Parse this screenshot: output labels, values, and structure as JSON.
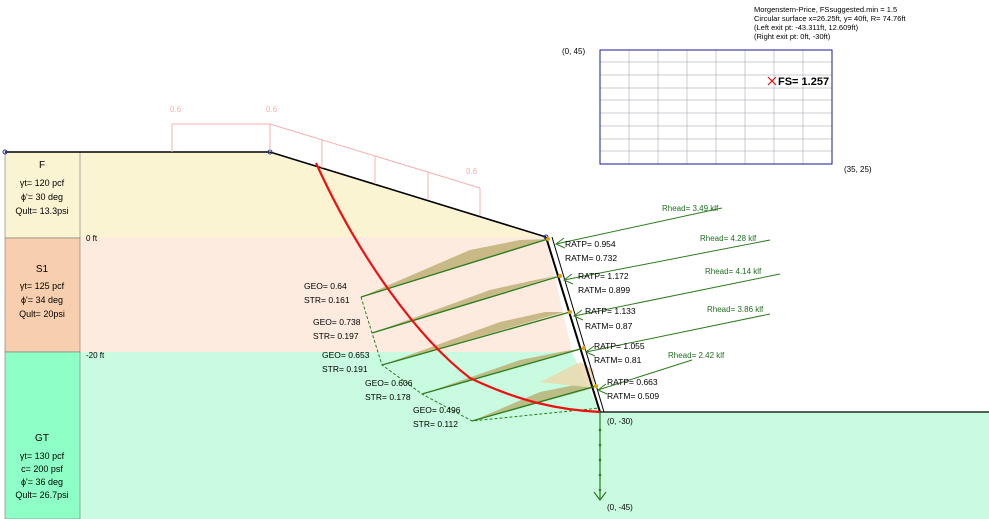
{
  "header": {
    "lines": [
      "Morgenstern-Price, FSsuggested.min = 1.5",
      "Circular surface x=26.25ft, y= 40ft, R= 74.76ft",
      "(Left exit pt: -43.311ft, 12.609ft)",
      "(Right exit pt: 0ft, -30ft)"
    ]
  },
  "grid": {
    "corner_top_left": "(0, 45)",
    "corner_bottom_right": "(35, 25)",
    "fs_label": "FS= 1.257"
  },
  "surcharge": {
    "labels": [
      "0.6",
      "0.6",
      "0.6"
    ]
  },
  "elevations": [
    "0 ft",
    "-20 ft"
  ],
  "layers": [
    {
      "name": "F",
      "props": [
        "γt= 120 pcf",
        "ϕ'= 30 deg",
        "Qult= 13.3psi"
      ],
      "color": "#fbf4d3"
    },
    {
      "name": "S1",
      "props": [
        "γt= 125 pcf",
        "ϕ'= 34 deg",
        "Qult= 20psi"
      ],
      "color": "#f7cfae"
    },
    {
      "name": "GT",
      "props": [
        "γt= 130 pcf",
        "c= 200 psf",
        "ϕ'= 36 deg",
        "Qult= 26.7psi"
      ],
      "color": "#8effc6"
    }
  ],
  "wall": {
    "top_label": "(0, -30)",
    "bottom_label": "(0, -45)"
  },
  "nails": [
    {
      "rhead": "Rhead= 3.49 klf",
      "ratp": "RATP= 0.954",
      "ratm": "RATM= 0.732",
      "geo": "GEO= 0.64",
      "str": "STR= 0.161"
    },
    {
      "rhead": "Rhead= 4.28 klf",
      "ratp": "RATP= 1.172",
      "ratm": "RATM= 0.899",
      "geo": "GEO= 0.738",
      "str": "STR= 0.197"
    },
    {
      "rhead": "Rhead= 4.14 klf",
      "ratp": "RATP= 1.133",
      "ratm": "RATM= 0.87",
      "geo": "GEO= 0.653",
      "str": "STR= 0.191"
    },
    {
      "rhead": "Rhead= 3.86 klf",
      "ratp": "RATP= 1.055",
      "ratm": "RATM= 0.81",
      "geo": "GEO= 0.606",
      "str": "STR= 0.178"
    },
    {
      "rhead": "Rhead= 2.42 klf",
      "ratp": "RATP= 0.663",
      "ratm": "RATM= 0.509",
      "geo": "GEO= 0.496",
      "str": "STR= 0.112"
    }
  ],
  "colors": {
    "slip_surface": "#ee1111",
    "nail": "#2e7d1f",
    "grid": "#1a1a99",
    "surcharge": "#f4b0b0",
    "fill_layer": "#fbf4d3",
    "s1_layer": "#fdebe0",
    "gt_layer": "#c9fbe1"
  }
}
